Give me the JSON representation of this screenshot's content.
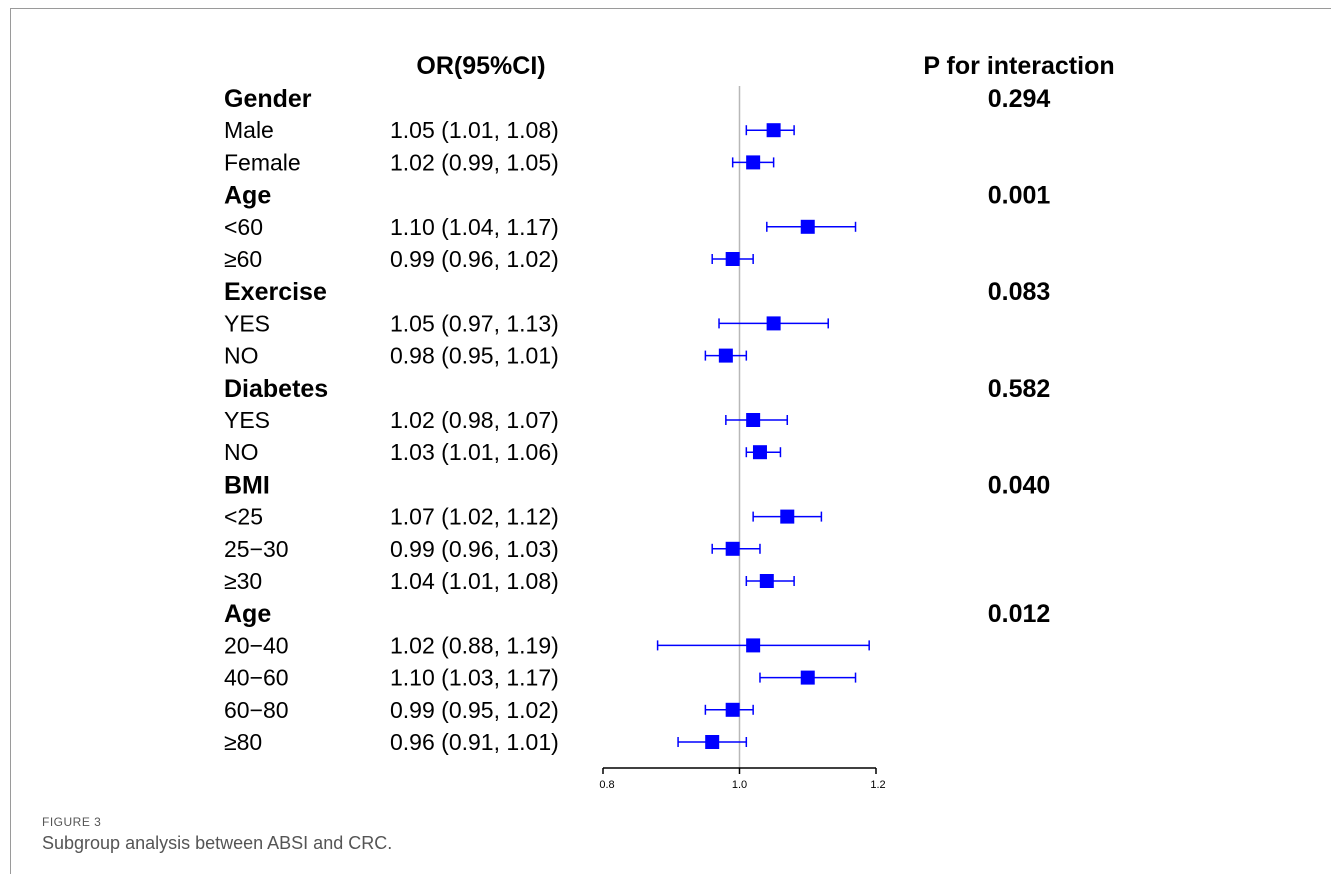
{
  "figure": {
    "label": "FIGURE 3",
    "caption": "Subgroup analysis between ABSI and CRC."
  },
  "chart_data": {
    "type": "forest",
    "headers": {
      "estimate": "OR(95%CI)",
      "p": "P for interaction"
    },
    "reference_line": 1.0,
    "xlim": [
      0.8,
      1.2
    ],
    "ticks": [
      {
        "value": 0.8,
        "label": "0.8"
      },
      {
        "value": 1.0,
        "label": "1.0"
      },
      {
        "value": 1.2,
        "label": "1.2"
      }
    ],
    "marker_color": "#0000ff",
    "rows": [
      {
        "kind": "group",
        "label": "Gender",
        "p": "0.294"
      },
      {
        "kind": "item",
        "label": "Male",
        "text": "1.05 (1.01, 1.08)",
        "or": 1.05,
        "lo": 1.01,
        "hi": 1.08
      },
      {
        "kind": "item",
        "label": "Female",
        "text": "1.02 (0.99, 1.05)",
        "or": 1.02,
        "lo": 0.99,
        "hi": 1.05
      },
      {
        "kind": "group",
        "label": "Age",
        "p": "0.001"
      },
      {
        "kind": "item",
        "label": "<60",
        "text": "1.10 (1.04, 1.17)",
        "or": 1.1,
        "lo": 1.04,
        "hi": 1.17
      },
      {
        "kind": "item",
        "label": "≥60",
        "text": "0.99 (0.96, 1.02)",
        "or": 0.99,
        "lo": 0.96,
        "hi": 1.02
      },
      {
        "kind": "group",
        "label": "Exercise",
        "p": "0.083"
      },
      {
        "kind": "item",
        "label": "YES",
        "text": "1.05 (0.97, 1.13)",
        "or": 1.05,
        "lo": 0.97,
        "hi": 1.13
      },
      {
        "kind": "item",
        "label": "NO",
        "text": "0.98 (0.95, 1.01)",
        "or": 0.98,
        "lo": 0.95,
        "hi": 1.01
      },
      {
        "kind": "group",
        "label": "Diabetes",
        "p": "0.582"
      },
      {
        "kind": "item",
        "label": "YES",
        "text": "1.02 (0.98, 1.07)",
        "or": 1.02,
        "lo": 0.98,
        "hi": 1.07
      },
      {
        "kind": "item",
        "label": "NO",
        "text": "1.03 (1.01, 1.06)",
        "or": 1.03,
        "lo": 1.01,
        "hi": 1.06
      },
      {
        "kind": "group",
        "label": "BMI",
        "p": "0.040"
      },
      {
        "kind": "item",
        "label": "<25",
        "text": "1.07 (1.02, 1.12)",
        "or": 1.07,
        "lo": 1.02,
        "hi": 1.12
      },
      {
        "kind": "item",
        "label": "25−30",
        "text": "0.99 (0.96, 1.03)",
        "or": 0.99,
        "lo": 0.96,
        "hi": 1.03
      },
      {
        "kind": "item",
        "label": "≥30",
        "text": "1.04 (1.01, 1.08)",
        "or": 1.04,
        "lo": 1.01,
        "hi": 1.08
      },
      {
        "kind": "group",
        "label": "Age",
        "p": "0.012"
      },
      {
        "kind": "item",
        "label": "20−40",
        "text": "1.02 (0.88, 1.19)",
        "or": 1.02,
        "lo": 0.88,
        "hi": 1.19
      },
      {
        "kind": "item",
        "label": "40−60",
        "text": "1.10 (1.03, 1.17)",
        "or": 1.1,
        "lo": 1.03,
        "hi": 1.17
      },
      {
        "kind": "item",
        "label": "60−80",
        "text": "0.99 (0.95, 1.02)",
        "or": 0.99,
        "lo": 0.95,
        "hi": 1.02
      },
      {
        "kind": "item",
        "label": "≥80",
        "text": "0.96 (0.91, 1.01)",
        "or": 0.96,
        "lo": 0.91,
        "hi": 1.01
      }
    ]
  }
}
